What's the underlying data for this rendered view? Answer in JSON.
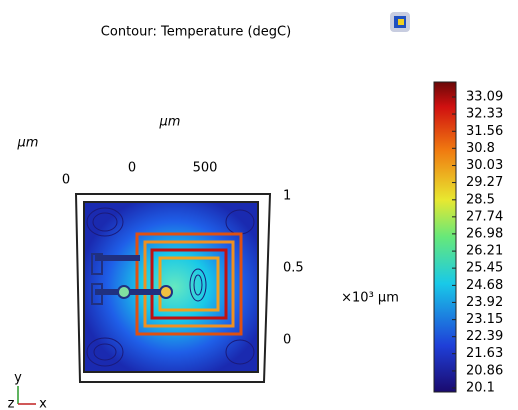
{
  "chart_data": {
    "type": "contour",
    "title": "Contour: Temperature (degC)",
    "xaxis": {
      "label": "μm",
      "ticks": [
        0,
        500
      ],
      "xlim": [
        -370,
        890
      ]
    },
    "yaxis": {
      "label": "×10³ μm",
      "ticks": [
        1,
        0.5,
        0
      ],
      "ylim": [
        -0.28,
        1
      ]
    },
    "zaxis": {
      "label": "μm",
      "ticks": [
        0
      ]
    },
    "colorbar": {
      "lim": [
        19.92,
        33.76
      ],
      "ticks": [
        33.09,
        32.33,
        31.56,
        30.8,
        30.03,
        29.27,
        28.5,
        27.74,
        26.98,
        26.21,
        25.45,
        24.68,
        23.92,
        23.15,
        22.39,
        21.63,
        20.86,
        20.1
      ]
    },
    "triad": {
      "x": "x",
      "y": "y",
      "z": "z"
    }
  }
}
